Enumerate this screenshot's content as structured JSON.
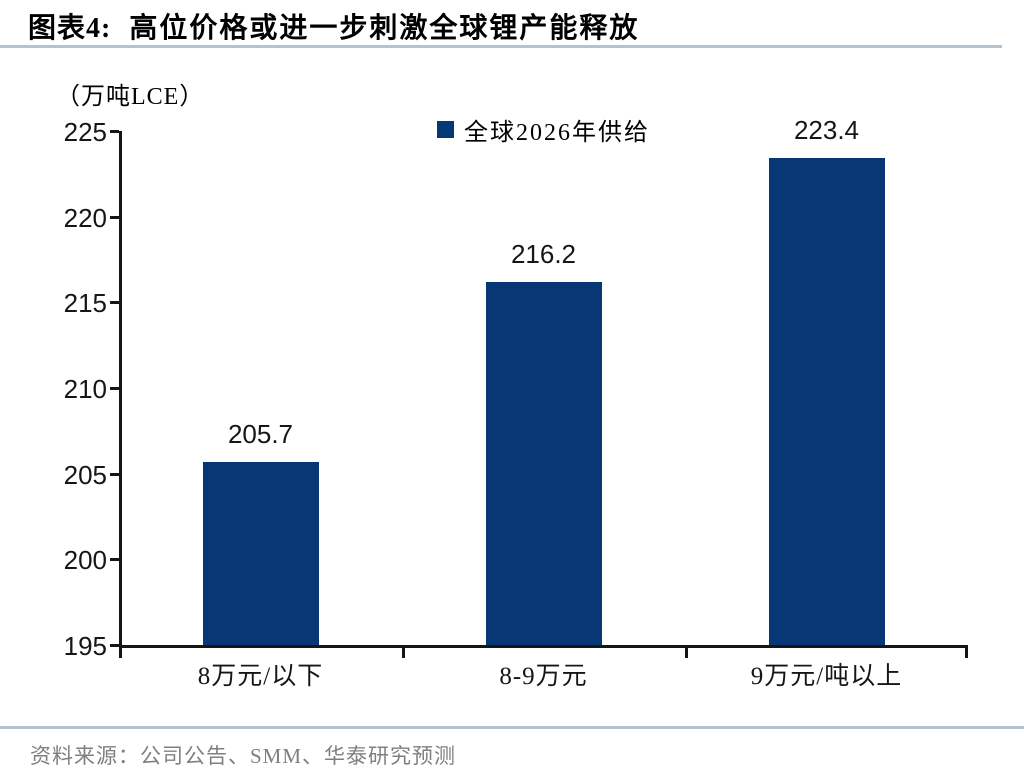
{
  "header": {
    "figure_label": "图表4:",
    "title": "高位价格或进一步刺激全球锂产能释放"
  },
  "unit_label": "（万吨LCE）",
  "legend": {
    "label": "全球2026年供给"
  },
  "chart_data": {
    "type": "bar",
    "title": "高位价格或进一步刺激全球锂产能释放",
    "categories": [
      "8万元/以下",
      "8-9万元",
      "9万元/吨以上"
    ],
    "series": [
      {
        "name": "全球2026年供给",
        "values": [
          205.7,
          216.2,
          223.4
        ]
      }
    ],
    "value_labels": [
      "205.7",
      "216.2",
      "223.4"
    ],
    "xlabel": "",
    "ylabel": "万吨LCE",
    "ylim": [
      195,
      225
    ],
    "yticks": [
      195,
      200,
      205,
      210,
      215,
      220,
      225
    ],
    "grid": false,
    "legend_position": "top-center",
    "bar_color": "#083776"
  },
  "source": {
    "text": "资料来源：公司公告、SMM、华泰研究预测"
  },
  "colors": {
    "bar": "#083776",
    "axis": "#161616",
    "divider": "#b3c3d0",
    "source_text": "#7f7f7f"
  }
}
